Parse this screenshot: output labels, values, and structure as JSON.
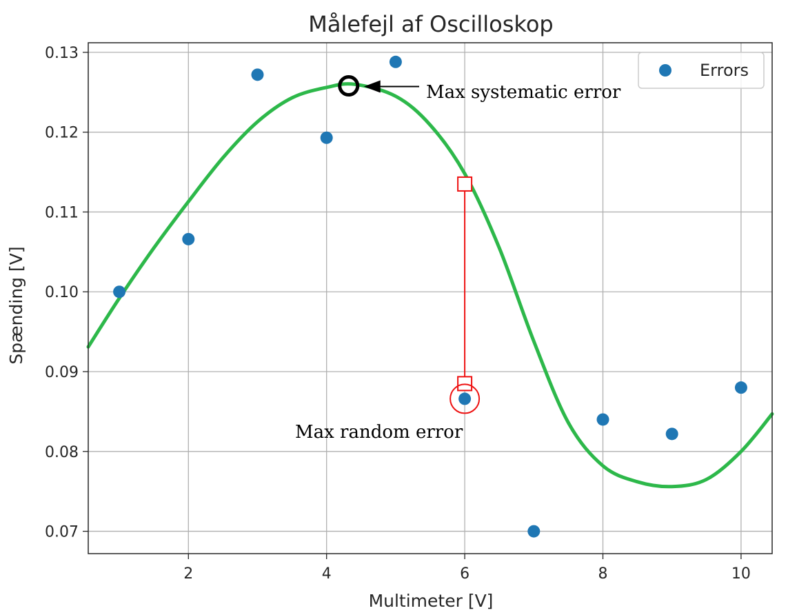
{
  "chart_data": {
    "type": "scatter",
    "title": "Målefejl af Oscilloskop",
    "xlabel": "Multimeter [V]",
    "ylabel": "Spænding [V]",
    "xlim": [
      0.55,
      10.45
    ],
    "ylim": [
      0.0672,
      0.1312
    ],
    "grid": true,
    "legend": {
      "position": "top-right",
      "entries": [
        "Errors"
      ]
    },
    "x_ticks": [
      2,
      4,
      6,
      8,
      10
    ],
    "x_tick_labels": [
      "2",
      "4",
      "6",
      "8",
      "10"
    ],
    "y_ticks": [
      0.07,
      0.08,
      0.09,
      0.1,
      0.11,
      0.12,
      0.13
    ],
    "y_tick_labels": [
      "0.07",
      "0.08",
      "0.09",
      "0.10",
      "0.11",
      "0.12",
      "0.13"
    ],
    "series": [
      {
        "name": "Errors",
        "color": "#1f77b4",
        "x": [
          1,
          2,
          3,
          4,
          5,
          6,
          7,
          8,
          9,
          10
        ],
        "y": [
          0.1,
          0.1066,
          0.1272,
          0.1193,
          0.1288,
          0.0866,
          0.07,
          0.084,
          0.0822,
          0.088
        ]
      }
    ],
    "fit_curve": {
      "color": "#2db84a",
      "x": [
        0.55,
        1.0,
        1.5,
        2.0,
        2.5,
        3.0,
        3.5,
        4.0,
        4.4,
        5.0,
        5.5,
        6.0,
        6.5,
        7.0,
        7.5,
        8.0,
        8.5,
        9.0,
        9.5,
        10.0,
        10.45
      ],
      "y": [
        0.0931,
        0.0992,
        0.1055,
        0.1113,
        0.1168,
        0.1213,
        0.1243,
        0.1256,
        0.126,
        0.1245,
        0.1209,
        0.1148,
        0.1055,
        0.0938,
        0.0836,
        0.0782,
        0.0762,
        0.0756,
        0.0765,
        0.08,
        0.0847
      ]
    },
    "annotations": {
      "systematic": {
        "text": "Max systematic error",
        "x": 4.32,
        "y": 0.1258,
        "color": "#000000"
      },
      "random": {
        "text": "Max random error",
        "x": 6.0,
        "y_top": 0.1135,
        "y_bottom": 0.0885,
        "point_y": 0.0866,
        "color": "#ee1111"
      }
    }
  }
}
